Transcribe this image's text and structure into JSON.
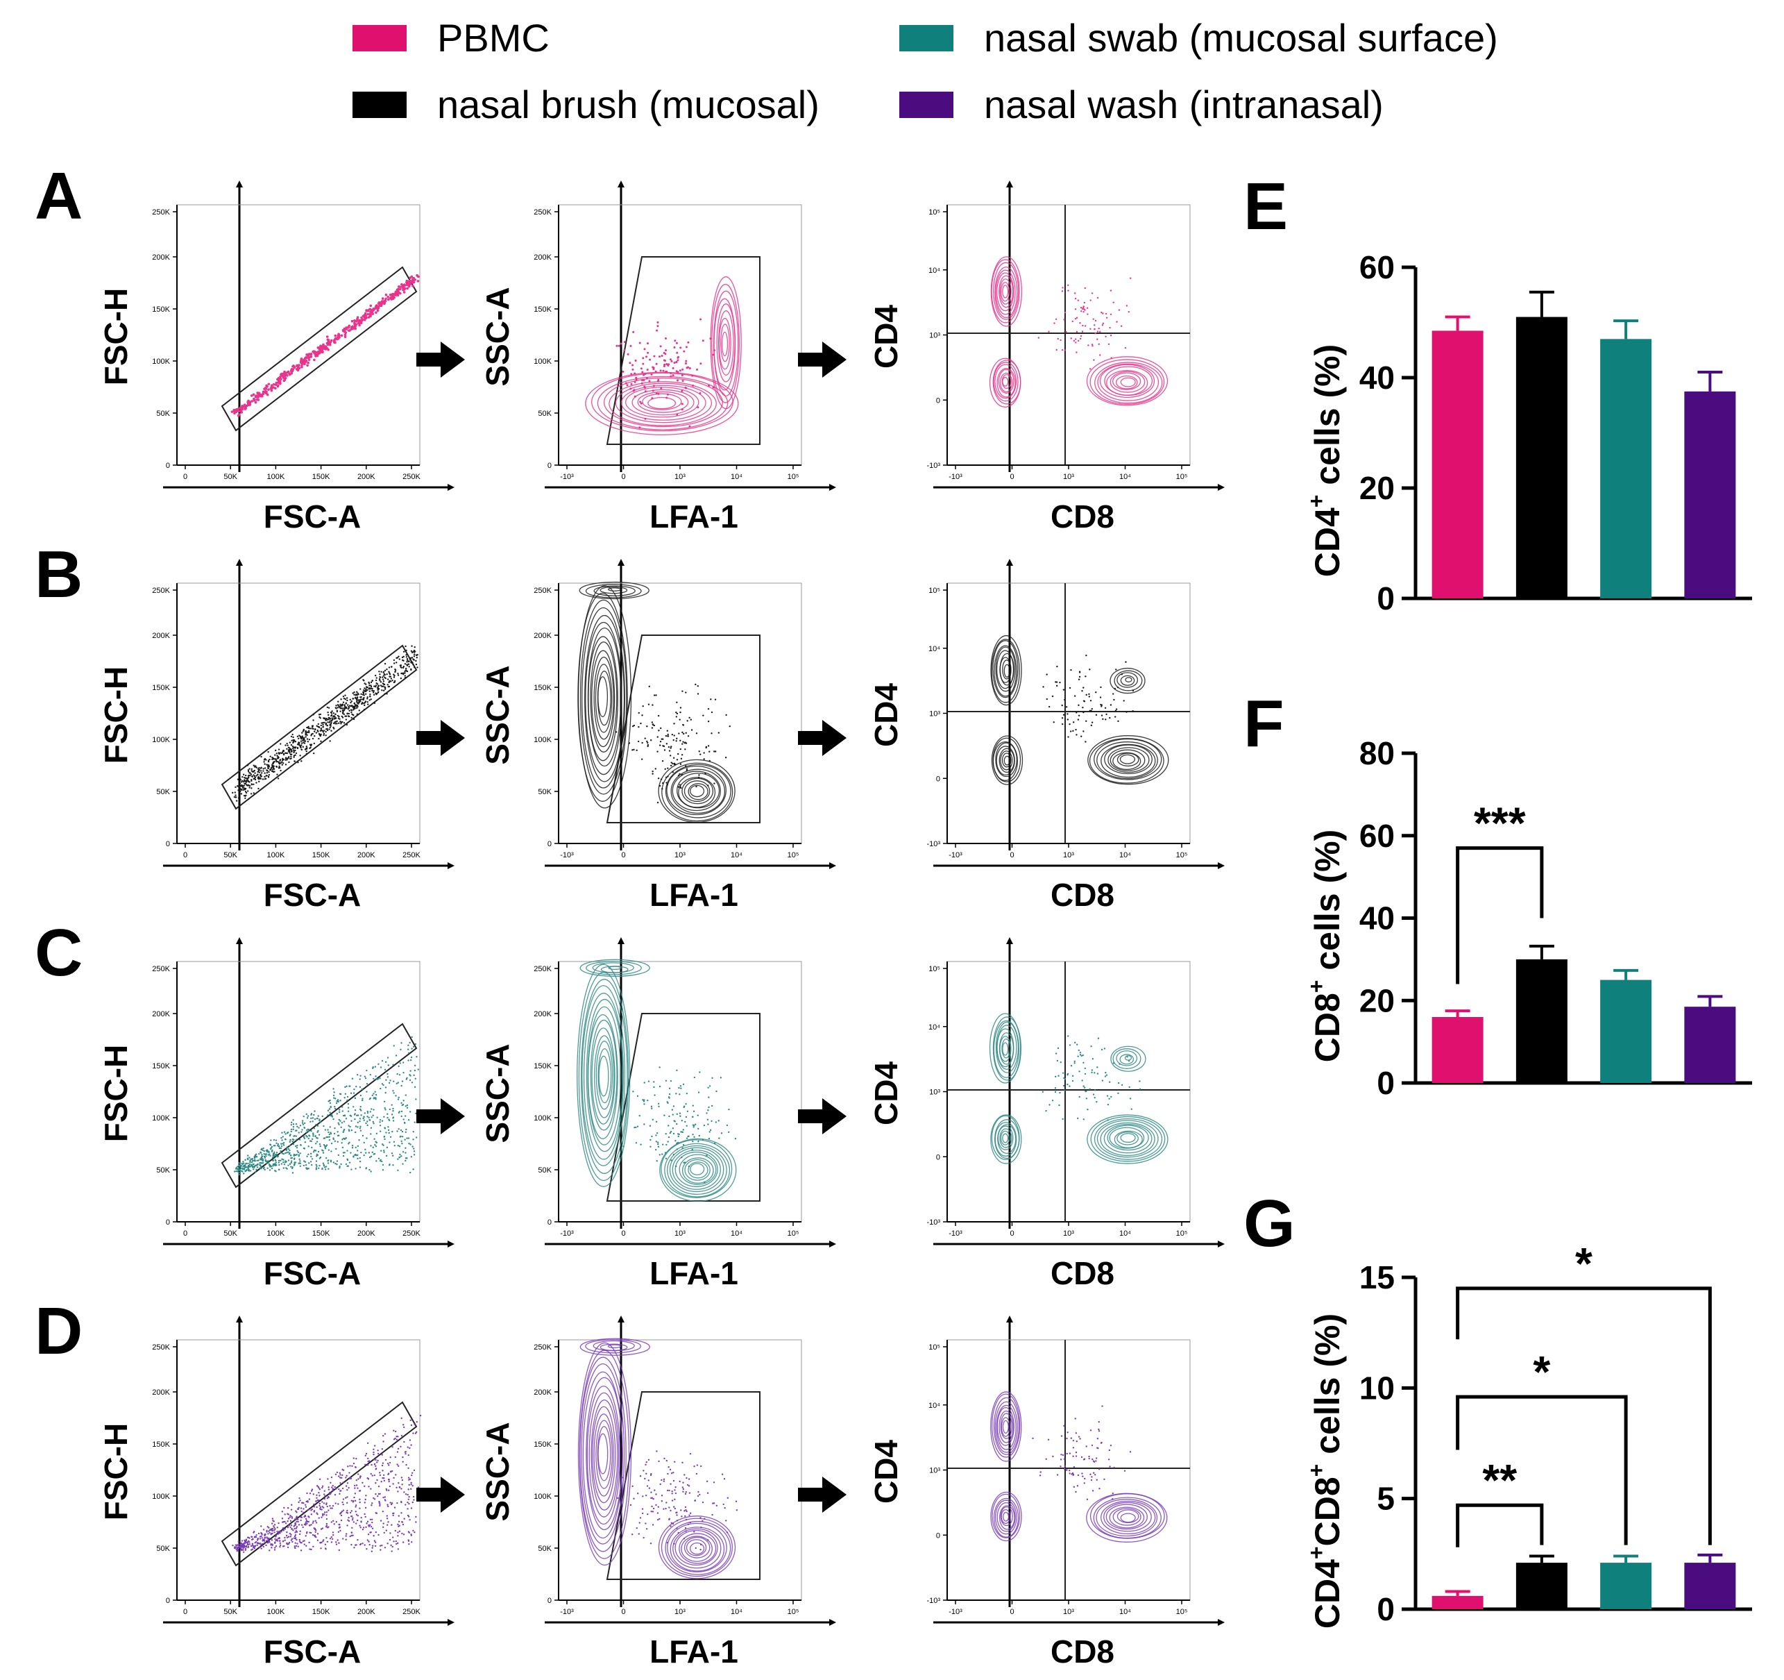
{
  "legend": [
    {
      "label": "PBMC",
      "color": "#e0116e"
    },
    {
      "label": "nasal swab (mucosal surface)",
      "color": "#10807c"
    },
    {
      "label": "nasal brush (mucosal)",
      "color": "#000000"
    },
    {
      "label": "nasal wash (intranasal)",
      "color": "#4a0c7e"
    }
  ],
  "flow_rows": [
    {
      "letter": "A",
      "color": "#e8348c"
    },
    {
      "letter": "B",
      "color": "#1a1a1a"
    },
    {
      "letter": "C",
      "color": "#2e8a85"
    },
    {
      "letter": "D",
      "color": "#7a3db8"
    }
  ],
  "flow_plots": [
    {
      "xlabel": "FSC-A",
      "ylabel": "FSC-H",
      "xticks": [
        "0",
        "50K",
        "100K",
        "150K",
        "200K",
        "250K"
      ],
      "yticks": [
        "0",
        "50K",
        "100K",
        "150K",
        "200K",
        "250K"
      ]
    },
    {
      "xlabel": "LFA-1",
      "ylabel": "SSC-A",
      "xticks": [
        "-10³",
        "0",
        "10³",
        "10⁴",
        "10⁵"
      ],
      "yticks": [
        "0",
        "50K",
        "100K",
        "150K",
        "200K",
        "250K"
      ]
    },
    {
      "xlabel": "CD8",
      "ylabel": "CD4",
      "xticks": [
        "-10³",
        "0",
        "10³",
        "10⁴",
        "10⁵"
      ],
      "yticks": [
        "-10³",
        "0",
        "10³",
        "10⁴",
        "10⁵"
      ]
    }
  ],
  "chart_data": [
    {
      "panel": "E",
      "type": "bar",
      "categories": [
        "PBMC",
        "nasal brush (mucosal)",
        "nasal swab (mucosal surface)",
        "nasal wash (intranasal)"
      ],
      "values": [
        48.5,
        51,
        47,
        37.5
      ],
      "errors": [
        2.5,
        4.5,
        3.3,
        3.5
      ],
      "colors": [
        "#e0116e",
        "#000000",
        "#10807c",
        "#4a0c7e"
      ],
      "ylabel_main": "CD4",
      "ylabel_sup": "+",
      "ylabel_rest": " cells (%)",
      "ylim": [
        0,
        60
      ],
      "yticks": [
        0,
        20,
        40,
        60
      ],
      "significance": []
    },
    {
      "panel": "F",
      "type": "bar",
      "categories": [
        "PBMC",
        "nasal brush (mucosal)",
        "nasal swab (mucosal surface)",
        "nasal wash (intranasal)"
      ],
      "values": [
        16,
        30,
        25,
        18.5
      ],
      "errors": [
        1.5,
        3.2,
        2.3,
        2.5
      ],
      "colors": [
        "#e0116e",
        "#000000",
        "#10807c",
        "#4a0c7e"
      ],
      "ylabel_main": "CD8",
      "ylabel_sup": "+",
      "ylabel_rest": " cells (%)",
      "ylim": [
        0,
        80
      ],
      "yticks": [
        0,
        20,
        40,
        60,
        80
      ],
      "significance": [
        {
          "from": 0,
          "to": 1,
          "label": "***"
        }
      ]
    },
    {
      "panel": "G",
      "type": "bar",
      "categories": [
        "PBMC",
        "nasal brush (mucosal)",
        "nasal swab (mucosal surface)",
        "nasal wash (intranasal)"
      ],
      "values": [
        0.6,
        2.1,
        2.1,
        2.1
      ],
      "errors": [
        0.2,
        0.3,
        0.3,
        0.35
      ],
      "colors": [
        "#e0116e",
        "#000000",
        "#10807c",
        "#4a0c7e"
      ],
      "ylabel_main": "CD4",
      "ylabel_sup": "+",
      "ylabel_mid": "CD8",
      "ylabel_sup2": "+",
      "ylabel_rest": " cells (%)",
      "ylim": [
        0,
        15
      ],
      "yticks": [
        0,
        5,
        10,
        15
      ],
      "significance": [
        {
          "from": 0,
          "to": 1,
          "label": "**"
        },
        {
          "from": 0,
          "to": 2,
          "label": "*"
        },
        {
          "from": 0,
          "to": 3,
          "label": "*"
        }
      ]
    }
  ]
}
